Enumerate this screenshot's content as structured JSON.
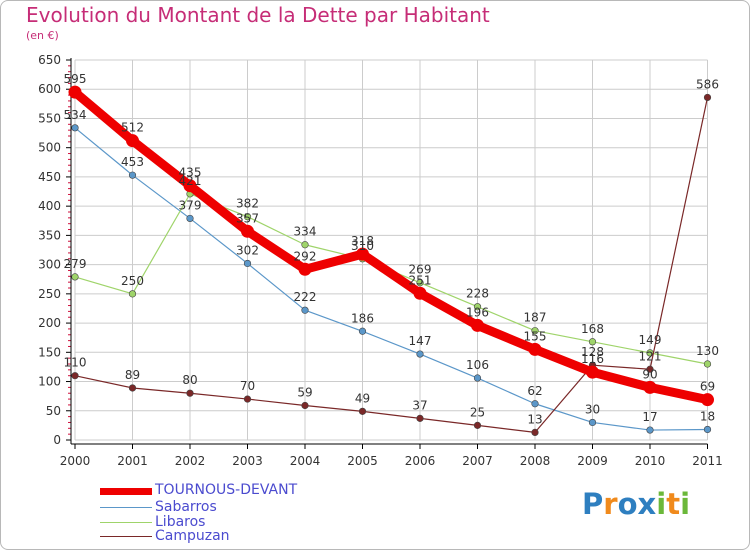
{
  "header": {
    "title": "Evolution du Montant de la Dette par Habitant",
    "subtitle": "(en €)"
  },
  "logo": {
    "text": "Proxiti",
    "letters": [
      "P",
      "r",
      "o",
      "x",
      "i",
      "t",
      "i"
    ]
  },
  "colors": {
    "title": "#c62d77",
    "legend_text": "#4b4bcf",
    "grid": "#cccccc",
    "axis": "#000000",
    "axis_minor_tick": "#d0103c"
  },
  "chart_data": {
    "type": "line",
    "x": [
      "2000",
      "2001",
      "2002",
      "2003",
      "2004",
      "2005",
      "2006",
      "2007",
      "2008",
      "2009",
      "2010",
      "2011"
    ],
    "ylim": [
      0,
      650
    ],
    "yticks": [
      0,
      50,
      100,
      150,
      200,
      250,
      300,
      350,
      400,
      450,
      500,
      550,
      600,
      650
    ],
    "grid": true,
    "legend_position": "bottom-left",
    "series": [
      {
        "name": "TOURNOUS-DEVANT",
        "color": "#ee0000",
        "emphasis": "thick",
        "values": [
          595,
          512,
          435,
          357,
          292,
          318,
          251,
          196,
          155,
          116,
          90,
          69
        ],
        "labels": [
          "595",
          "512",
          "435",
          "357",
          "292",
          "318",
          "251",
          "196",
          "155",
          "116",
          "90",
          "69"
        ]
      },
      {
        "name": "Sabarros",
        "color": "#5b97c9",
        "emphasis": "thin",
        "values": [
          534,
          453,
          379,
          302,
          222,
          186,
          147,
          106,
          62,
          30,
          17,
          18
        ],
        "labels": [
          "534",
          "453",
          "379",
          "302",
          "222",
          "186",
          "147",
          "106",
          "62",
          "30",
          "17",
          "18"
        ]
      },
      {
        "name": "Libaros",
        "color": "#9fd46a",
        "emphasis": "thin",
        "values": [
          279,
          250,
          421,
          382,
          334,
          310,
          269,
          228,
          187,
          168,
          149,
          130
        ],
        "labels": [
          "279",
          "250",
          "421",
          "382",
          "334",
          "310",
          "269",
          "228",
          "187",
          "168",
          "149",
          "130"
        ]
      },
      {
        "name": "Campuzan",
        "color": "#7a2828",
        "emphasis": "thin",
        "values": [
          110,
          89,
          80,
          70,
          59,
          49,
          37,
          25,
          13,
          128,
          121,
          586
        ],
        "labels": [
          "110",
          "89",
          "80",
          "70",
          "59",
          "49",
          "37",
          "25",
          "13",
          "128",
          "121",
          "586"
        ]
      }
    ]
  }
}
